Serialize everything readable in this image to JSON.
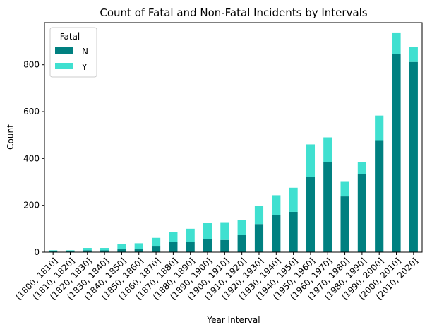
{
  "chart_data": {
    "type": "bar",
    "stacked": true,
    "title": "Count of Fatal and Non-Fatal Incidents by Intervals",
    "xlabel": "Year Interval",
    "ylabel": "Count",
    "ylim": [
      0,
      980
    ],
    "yticks": [
      0,
      200,
      400,
      600,
      800
    ],
    "categories": [
      "(1800, 1810]",
      "(1810, 1820]",
      "(1820, 1830]",
      "(1830, 1840]",
      "(1840, 1850]",
      "(1850, 1860]",
      "(1860, 1870]",
      "(1870, 1880]",
      "(1880, 1890]",
      "(1890, 1900]",
      "(1900, 1910]",
      "(1910, 1920]",
      "(1920, 1930]",
      "(1930, 1940]",
      "(1940, 1950]",
      "(1950, 1960]",
      "(1960, 1970]",
      "(1970, 1980]",
      "(1980, 1990]",
      "(1990, 2000]",
      "(2000, 2010]",
      "(2010, 2020]"
    ],
    "series": [
      {
        "name": "N",
        "color": "#008080",
        "values": [
          3,
          3,
          8,
          8,
          12,
          12,
          27,
          45,
          45,
          57,
          52,
          75,
          120,
          158,
          172,
          320,
          383,
          238,
          333,
          478,
          845,
          812
        ]
      },
      {
        "name": "Y",
        "color": "#40e0d0",
        "values": [
          5,
          5,
          10,
          10,
          24,
          26,
          34,
          40,
          55,
          68,
          76,
          62,
          78,
          85,
          103,
          140,
          107,
          65,
          50,
          105,
          90,
          63
        ]
      }
    ],
    "legend": {
      "title": "Fatal",
      "placement": "top-left"
    },
    "grid": false
  }
}
